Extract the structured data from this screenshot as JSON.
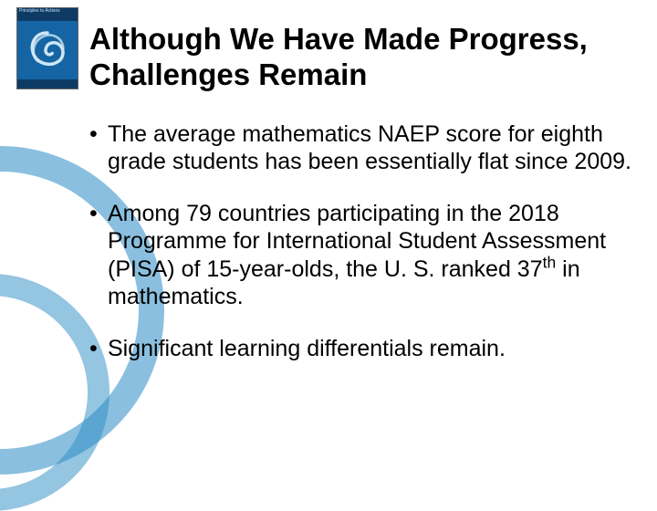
{
  "background": {
    "circle1_color": "#2a8bc4",
    "circle2_color": "#2a8bc4"
  },
  "logo": {
    "header_text": "Principles to Actions",
    "box_bg": "#1565a5",
    "header_bg": "#0d3b66",
    "swirl_color": "#cfe6f5"
  },
  "title": "Although We Have Made Progress, Challenges Remain",
  "bullets": [
    "The average mathematics NAEP score for eighth grade students has been essentially flat since 2009.",
    "Among 79 countries participating in the 2018 Programme for International Student  Assessment (PISA) of 15-year-olds, the U. S. ranked 37th in mathematics.",
    "Significant learning differentials remain."
  ],
  "colors": {
    "title_color": "#000000",
    "body_color": "#000000",
    "page_bg": "#ffffff"
  },
  "typography": {
    "title_fontsize": 33,
    "title_weight": "bold",
    "body_fontsize": 25,
    "font_family": "Arial"
  }
}
